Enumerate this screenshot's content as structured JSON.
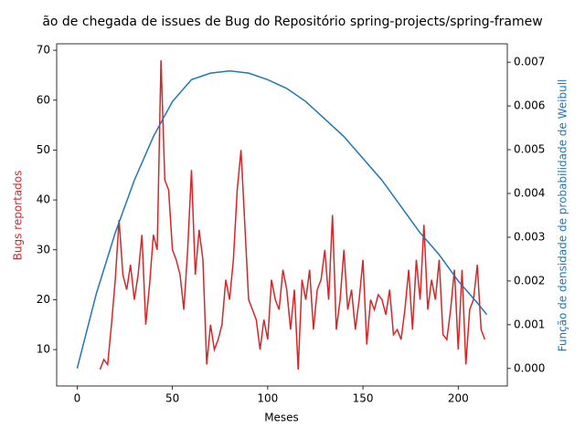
{
  "chart_data": {
    "type": "line",
    "title": "ão de chegada de issues de Bug do Repositório spring-projects/spring-framew",
    "x_label": "Meses",
    "y_label": "Bugs reportados",
    "y2_label": "Função de densidade de probabilidade de Weibull",
    "xlim": [
      -10.75,
      225.75
    ],
    "xticks": [
      0,
      50,
      100,
      150,
      200
    ],
    "ylim": [
      2.7,
      71.3
    ],
    "yticks": [
      10,
      20,
      30,
      40,
      50,
      60,
      70
    ],
    "y2lim": [
      -0.0004,
      0.00742
    ],
    "y2ticks": [
      {
        "value": 0,
        "label": "0.000"
      },
      0.001,
      0.002,
      0.003,
      0.004,
      0.005,
      0.006,
      0.007
    ],
    "series": [
      {
        "name": "Bugs reportados",
        "color": "#d62728",
        "axis": "y",
        "x": [
          12,
          14,
          16,
          18,
          20,
          22,
          24,
          26,
          28,
          30,
          32,
          34,
          36,
          38,
          40,
          42,
          44,
          46,
          48,
          50,
          52,
          54,
          56,
          58,
          60,
          62,
          64,
          66,
          68,
          70,
          72,
          74,
          76,
          78,
          80,
          82,
          84,
          86,
          88,
          90,
          92,
          94,
          96,
          98,
          100,
          102,
          104,
          106,
          108,
          110,
          112,
          114,
          116,
          118,
          120,
          122,
          124,
          126,
          128,
          130,
          132,
          134,
          136,
          138,
          140,
          142,
          144,
          146,
          148,
          150,
          152,
          154,
          156,
          158,
          160,
          162,
          164,
          166,
          168,
          170,
          172,
          174,
          176,
          178,
          180,
          182,
          184,
          186,
          188,
          190,
          192,
          194,
          196,
          198,
          200,
          202,
          204,
          206,
          208,
          210,
          212,
          214
        ],
        "values": [
          6,
          8,
          7,
          15,
          24,
          36,
          25,
          22,
          27,
          20,
          25,
          33,
          15,
          23,
          33,
          30,
          68,
          44,
          42,
          30,
          28,
          25,
          18,
          30,
          46,
          25,
          34,
          28,
          7,
          15,
          10,
          12,
          15,
          24,
          20,
          28,
          42,
          50,
          35,
          20,
          18,
          16,
          10,
          16,
          12,
          24,
          20,
          18,
          26,
          22,
          14,
          22,
          6,
          24,
          20,
          26,
          14,
          22,
          24,
          30,
          20,
          37,
          14,
          20,
          30,
          18,
          22,
          14,
          20,
          28,
          11,
          20,
          18,
          21,
          20,
          17,
          22,
          13,
          14,
          12,
          18,
          26,
          14,
          28,
          20,
          35,
          18,
          24,
          20,
          28,
          13,
          12,
          18,
          26,
          10,
          26,
          7,
          18,
          20,
          27,
          14,
          12
        ]
      },
      {
        "name": "Função de densidade de probabilidade de Weibull",
        "color": "#1f77b4",
        "axis": "y2",
        "x": [
          0,
          10,
          20,
          30,
          40,
          50,
          60,
          70,
          80,
          90,
          100,
          110,
          120,
          130,
          140,
          150,
          160,
          170,
          180,
          190,
          200,
          210,
          215
        ],
        "values": [
          0,
          0.0017,
          0.0031,
          0.0043,
          0.0053,
          0.0061,
          0.0066,
          0.00675,
          0.0068,
          0.00675,
          0.0066,
          0.0064,
          0.0061,
          0.0057,
          0.0053,
          0.0048,
          0.0043,
          0.0037,
          0.0031,
          0.0026,
          0.002,
          0.0015,
          0.00123
        ]
      }
    ]
  }
}
